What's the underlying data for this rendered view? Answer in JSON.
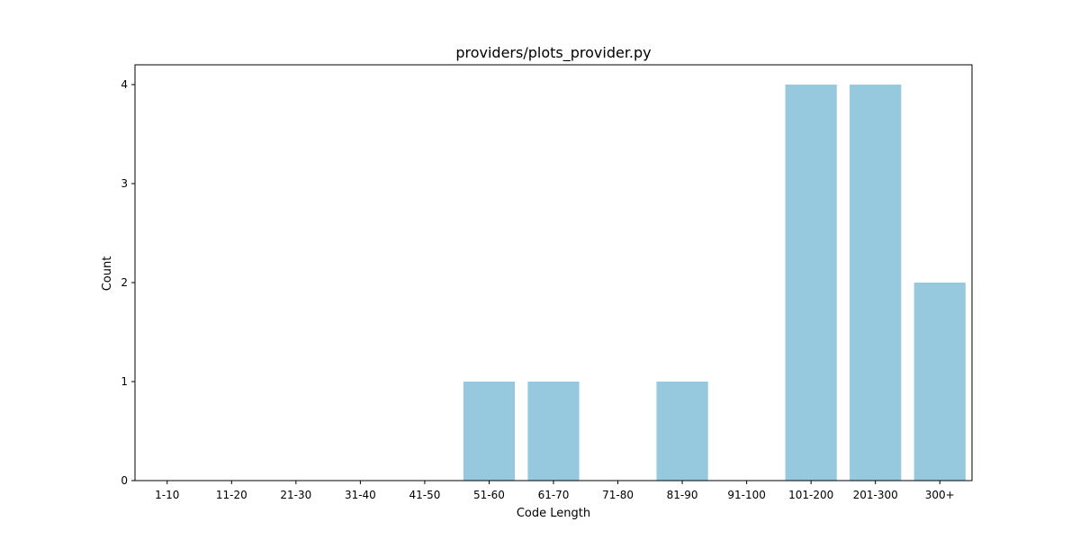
{
  "chart_data": {
    "type": "bar",
    "title": "providers/plots_provider.py",
    "xlabel": "Code Length",
    "ylabel": "Count",
    "categories": [
      "1-10",
      "11-20",
      "21-30",
      "31-40",
      "41-50",
      "51-60",
      "61-70",
      "71-80",
      "81-90",
      "91-100",
      "101-200",
      "201-300",
      "300+"
    ],
    "values": [
      0,
      0,
      0,
      0,
      0,
      1,
      1,
      0,
      1,
      0,
      4,
      4,
      2
    ],
    "ylim": [
      0,
      4.2
    ],
    "yticks": [
      0,
      1,
      2,
      3,
      4
    ],
    "bar_color": "#96c9de",
    "grid": false,
    "legend": "none"
  }
}
